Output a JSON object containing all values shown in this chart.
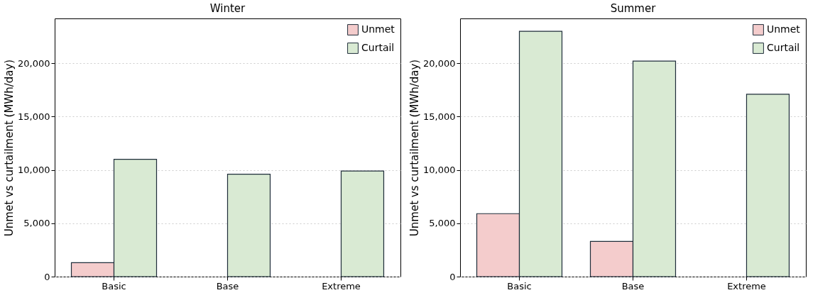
{
  "chart_data": [
    {
      "type": "bar",
      "title": "Winter",
      "ylabel": "Unmet vs curtailment  (MWh/day)",
      "categories": [
        "Basic",
        "Base",
        "Extreme"
      ],
      "series": [
        {
          "name": "Unmet",
          "color": "#f4cccc",
          "values": [
            1300,
            null,
            null
          ]
        },
        {
          "name": "Curtail",
          "color": "#d9ead3",
          "values": [
            11000,
            9600,
            9900
          ]
        }
      ],
      "ylim": [
        0,
        24200
      ],
      "yticks": [
        0,
        {
          "value": 5000,
          "label": "5,000"
        },
        {
          "value": 10000,
          "label": "10,000"
        },
        {
          "value": 15000,
          "label": "15,000"
        },
        {
          "value": 20000,
          "label": "20,000"
        }
      ],
      "grid": "y",
      "legend": "top right"
    },
    {
      "type": "bar",
      "title": "Summer",
      "ylabel": "Unmet vs curtailment  (MWh/day)",
      "categories": [
        "Basic",
        "Base",
        "Extreme"
      ],
      "series": [
        {
          "name": "Unmet",
          "color": "#f4cccc",
          "values": [
            5900,
            3300,
            null
          ]
        },
        {
          "name": "Curtail",
          "color": "#d9ead3",
          "values": [
            23000,
            20200,
            17100
          ]
        }
      ],
      "ylim": [
        0,
        24200
      ],
      "yticks": [
        0,
        {
          "value": 5000,
          "label": "5,000"
        },
        {
          "value": 10000,
          "label": "10,000"
        },
        {
          "value": 15000,
          "label": "15,000"
        },
        {
          "value": 20000,
          "label": "20,000"
        }
      ],
      "grid": "y",
      "legend": "top right"
    }
  ]
}
